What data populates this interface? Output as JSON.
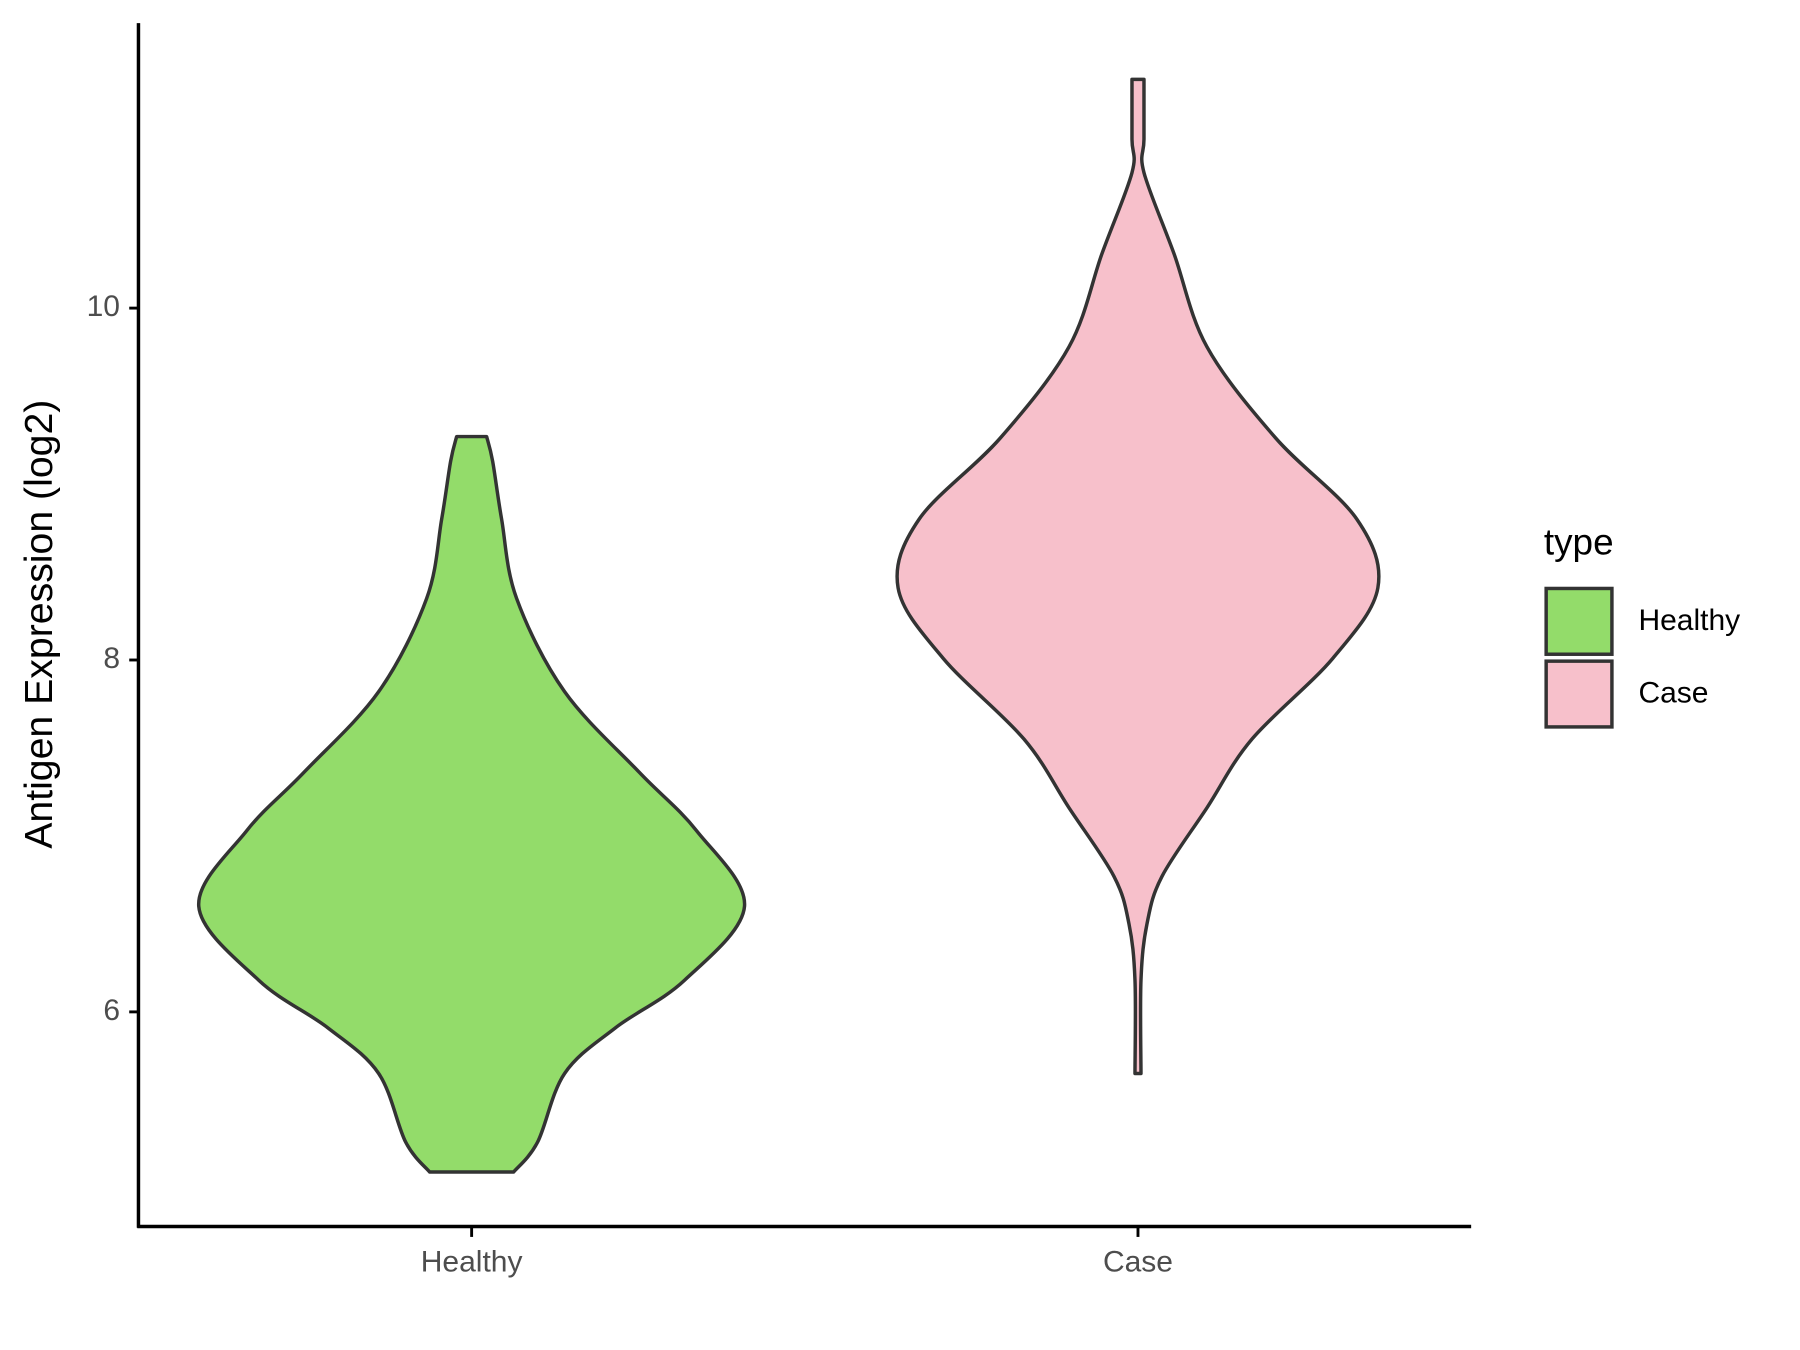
{
  "chart_data": {
    "type": "violin",
    "y_label": "Antigen Expression (log2)",
    "categories": [
      "Healthy",
      "Case"
    ],
    "legend_title": "type",
    "legend_position": "right",
    "ylim": [
      4.78,
      11.62
    ],
    "yticks": [
      6,
      8,
      10
    ],
    "series": [
      {
        "name": "Healthy",
        "color": "#93dc6a",
        "y": [
          5.09,
          5.26,
          5.65,
          5.91,
          6.18,
          6.6,
          7.03,
          7.36,
          7.82,
          8.35,
          8.8,
          9.13,
          9.27
        ],
        "density": [
          0.14,
          0.22,
          0.31,
          0.48,
          0.71,
          0.91,
          0.75,
          0.56,
          0.31,
          0.15,
          0.1,
          0.07,
          0.05
        ]
      },
      {
        "name": "Case",
        "color": "#f7c0cb",
        "y": [
          5.65,
          6.18,
          6.5,
          6.77,
          7.16,
          7.55,
          8.01,
          8.41,
          8.8,
          9.26,
          9.78,
          10.31,
          10.77,
          10.96,
          11.3
        ],
        "density": [
          0.01,
          0.01,
          0.03,
          0.08,
          0.23,
          0.38,
          0.65,
          0.8,
          0.73,
          0.46,
          0.23,
          0.12,
          0.02,
          0.02,
          0.02
        ]
      }
    ]
  }
}
